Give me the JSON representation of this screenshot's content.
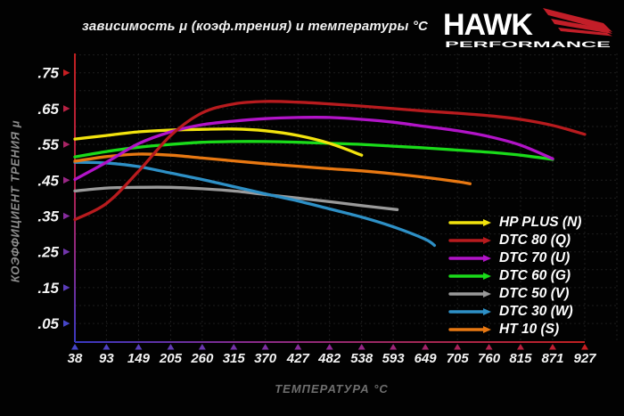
{
  "header": {
    "title": "зависимость μ (коэф.трения) и температуры °C",
    "logo": {
      "brand": "HAWK",
      "sub": "PERFORMANCE"
    }
  },
  "colors": {
    "background": "#020202",
    "grid": "#1e1e1e",
    "tick_text": "#f4f4f4",
    "axis_low_blue": "#3838c0",
    "axis_mid_purple": "#8a2a8a",
    "axis_high_red": "#c02020",
    "muted_label_gray": "#8c8c8c",
    "logo_red": "#c21e28"
  },
  "chart_data": {
    "type": "line",
    "title": "зависимость μ (коэф.трения) и температуры °C",
    "xlabel": "ТЕМПЕРАТУРА °C",
    "ylabel": "КОЭФФИЦИЕНТ ТРЕНИЯ μ",
    "xlim": [
      38,
      927
    ],
    "ylim": [
      0,
      0.8
    ],
    "grid": "dotted",
    "legend_position": "bottom-right",
    "x_ticks": [
      38,
      93,
      149,
      205,
      260,
      315,
      370,
      427,
      482,
      538,
      593,
      649,
      705,
      760,
      815,
      871,
      927
    ],
    "y_ticks": [
      0.75,
      0.65,
      0.55,
      0.45,
      0.35,
      0.25,
      0.15,
      0.05
    ],
    "y_tick_labels": [
      ".75",
      ".65",
      ".55",
      ".45",
      ".35",
      ".25",
      ".15",
      ".05"
    ],
    "series": [
      {
        "label": "HP PLUS (N)",
        "color": "#f2e30e",
        "x": [
          38,
          93,
          149,
          205,
          260,
          315,
          370,
          427,
          482,
          538
        ],
        "y": [
          0.565,
          0.575,
          0.585,
          0.59,
          0.592,
          0.593,
          0.588,
          0.575,
          0.553,
          0.52
        ]
      },
      {
        "label": "DTC 80 (Q)",
        "color": "#b81b1e",
        "x": [
          38,
          93,
          149,
          205,
          260,
          315,
          370,
          427,
          482,
          538,
          593,
          649,
          705,
          760,
          815,
          871,
          927
        ],
        "y": [
          0.34,
          0.385,
          0.475,
          0.575,
          0.638,
          0.663,
          0.67,
          0.668,
          0.663,
          0.657,
          0.65,
          0.643,
          0.637,
          0.63,
          0.62,
          0.603,
          0.578
        ]
      },
      {
        "label": "DTC 70 (U)",
        "color": "#b214c8",
        "x": [
          38,
          93,
          149,
          205,
          260,
          315,
          370,
          427,
          482,
          538,
          593,
          649,
          705,
          760,
          815,
          871
        ],
        "y": [
          0.452,
          0.5,
          0.552,
          0.585,
          0.605,
          0.615,
          0.622,
          0.625,
          0.625,
          0.62,
          0.612,
          0.6,
          0.588,
          0.572,
          0.548,
          0.51
        ]
      },
      {
        "label": "DTC 60 (G)",
        "color": "#1adb1a",
        "x": [
          38,
          93,
          149,
          205,
          260,
          315,
          370,
          427,
          482,
          538,
          593,
          649,
          705,
          760,
          815,
          871
        ],
        "y": [
          0.515,
          0.53,
          0.542,
          0.55,
          0.556,
          0.558,
          0.558,
          0.556,
          0.553,
          0.55,
          0.545,
          0.54,
          0.534,
          0.528,
          0.52,
          0.508
        ]
      },
      {
        "label": "DTC 50 (V)",
        "color": "#9a9a9a",
        "x": [
          38,
          93,
          149,
          205,
          260,
          315,
          370,
          427,
          482,
          538,
          600
        ],
        "y": [
          0.42,
          0.428,
          0.43,
          0.43,
          0.426,
          0.42,
          0.41,
          0.4,
          0.39,
          0.379,
          0.368
        ]
      },
      {
        "label": "DTC 30 (W)",
        "color": "#2e90c6",
        "x": [
          38,
          93,
          149,
          205,
          260,
          315,
          370,
          427,
          482,
          538,
          593,
          649,
          665
        ],
        "y": [
          0.5,
          0.498,
          0.488,
          0.47,
          0.452,
          0.432,
          0.412,
          0.392,
          0.37,
          0.347,
          0.32,
          0.285,
          0.268
        ]
      },
      {
        "label": "HT 10 (S)",
        "color": "#e87812",
        "x": [
          38,
          93,
          149,
          205,
          260,
          315,
          370,
          427,
          482,
          538,
          593,
          649,
          705,
          727
        ],
        "y": [
          0.503,
          0.516,
          0.523,
          0.52,
          0.512,
          0.504,
          0.496,
          0.489,
          0.482,
          0.476,
          0.468,
          0.458,
          0.446,
          0.44
        ]
      }
    ]
  }
}
